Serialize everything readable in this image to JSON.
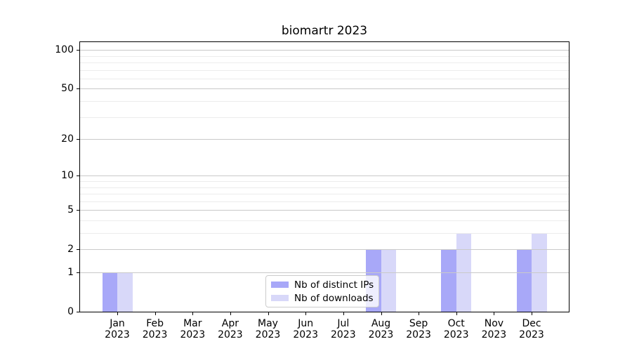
{
  "chart_data": {
    "type": "bar",
    "title": "biomartr 2023",
    "categories": [
      "Jan 2023",
      "Feb 2023",
      "Mar 2023",
      "Apr 2023",
      "May 2023",
      "Jun 2023",
      "Jul 2023",
      "Aug 2023",
      "Sep 2023",
      "Oct 2023",
      "Nov 2023",
      "Dec 2023"
    ],
    "series": [
      {
        "name": "Nb of distinct IPs",
        "color": "#a8a8f8",
        "values": [
          1,
          0,
          0,
          0,
          0,
          0,
          0,
          2,
          0,
          2,
          0,
          2
        ]
      },
      {
        "name": "Nb of downloads",
        "color": "#d8d8f9",
        "values": [
          1,
          0,
          0,
          0,
          0,
          0,
          0,
          2,
          0,
          3,
          0,
          3
        ]
      }
    ],
    "yscale": "log1p",
    "ylim": [
      0,
      115
    ],
    "major_yticks": [
      0,
      1,
      2,
      5,
      10,
      20,
      50,
      100
    ],
    "minor_yticks": [
      3,
      4,
      6,
      7,
      8,
      9,
      30,
      40,
      60,
      70,
      80,
      90
    ],
    "grid": "horizontal, major and minor, drawn above bars",
    "legend_position": "lower center",
    "xlabel": "",
    "ylabel": ""
  },
  "colors": {
    "background": "#ffffff",
    "spine": "#000000",
    "grid_major": "#c9c9c9",
    "grid_minor": "#ececec",
    "legend_border": "#cccccc",
    "text": "#000000"
  }
}
